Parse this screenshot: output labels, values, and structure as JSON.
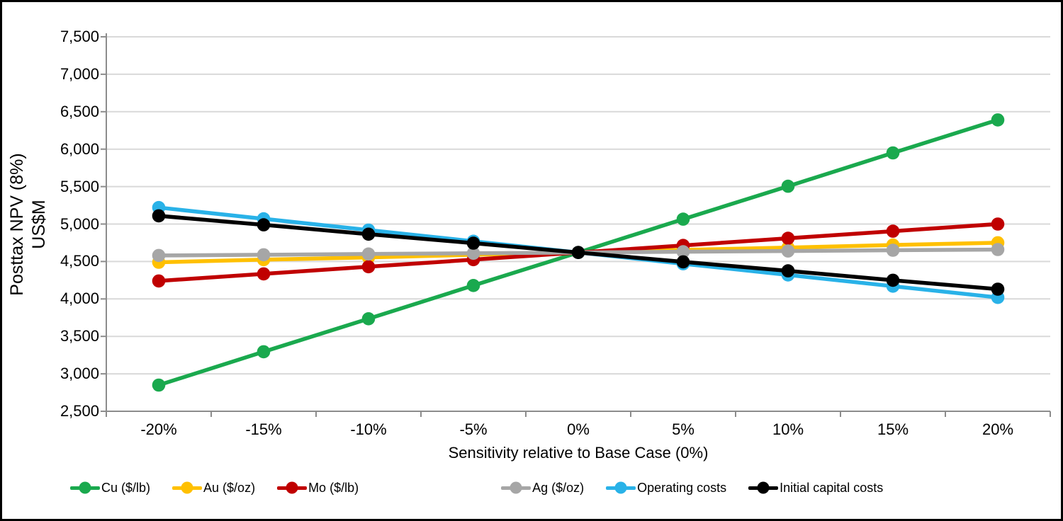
{
  "chart_data": {
    "type": "line",
    "title": "",
    "xlabel": "Sensitivity relative to Base Case (0%)",
    "ylabel_line1": "Posttax NPV (8%)",
    "ylabel_line2": "US$M",
    "categories": [
      "-20%",
      "-15%",
      "-10%",
      "-5%",
      "0%",
      "5%",
      "10%",
      "15%",
      "20%"
    ],
    "ylim": [
      2500,
      7500
    ],
    "ytick_step": 500,
    "ytick_labels": [
      "2,500",
      "3,000",
      "3,500",
      "4,000",
      "4,500",
      "5,000",
      "5,500",
      "6,000",
      "6,500",
      "7,000",
      "7,500"
    ],
    "grid": true,
    "legend_position": "bottom",
    "base_case_value": 4620,
    "series": [
      {
        "name": "Cu ($/lb)",
        "color": "#1AA94E",
        "values": [
          2850,
          3295,
          3735,
          4180,
          4620,
          5065,
          5505,
          5950,
          6390
        ]
      },
      {
        "name": "Au ($/oz)",
        "color": "#FFC000",
        "values": [
          4490,
          4525,
          4555,
          4590,
          4620,
          4655,
          4685,
          4720,
          4750
        ]
      },
      {
        "name": "Mo ($/lb)",
        "color": "#C00000",
        "values": [
          4240,
          4335,
          4430,
          4525,
          4620,
          4715,
          4810,
          4905,
          5000
        ]
      },
      {
        "name": "Ag ($/oz)",
        "color": "#A6A6A6",
        "values": [
          4580,
          4590,
          4600,
          4610,
          4620,
          4630,
          4640,
          4650,
          4660
        ]
      },
      {
        "name": "Operating costs",
        "color": "#29B2E8",
        "values": [
          5220,
          5070,
          4920,
          4770,
          4620,
          4470,
          4320,
          4170,
          4020
        ]
      },
      {
        "name": "Initial capital costs",
        "color": "#000000",
        "values": [
          5110,
          4990,
          4865,
          4745,
          4620,
          4495,
          4375,
          4250,
          4130
        ]
      }
    ],
    "colors": {
      "grid": "#D9D9D9",
      "axis": "#8C8C8C",
      "text": "#000000",
      "background": "#FFFFFF"
    }
  }
}
